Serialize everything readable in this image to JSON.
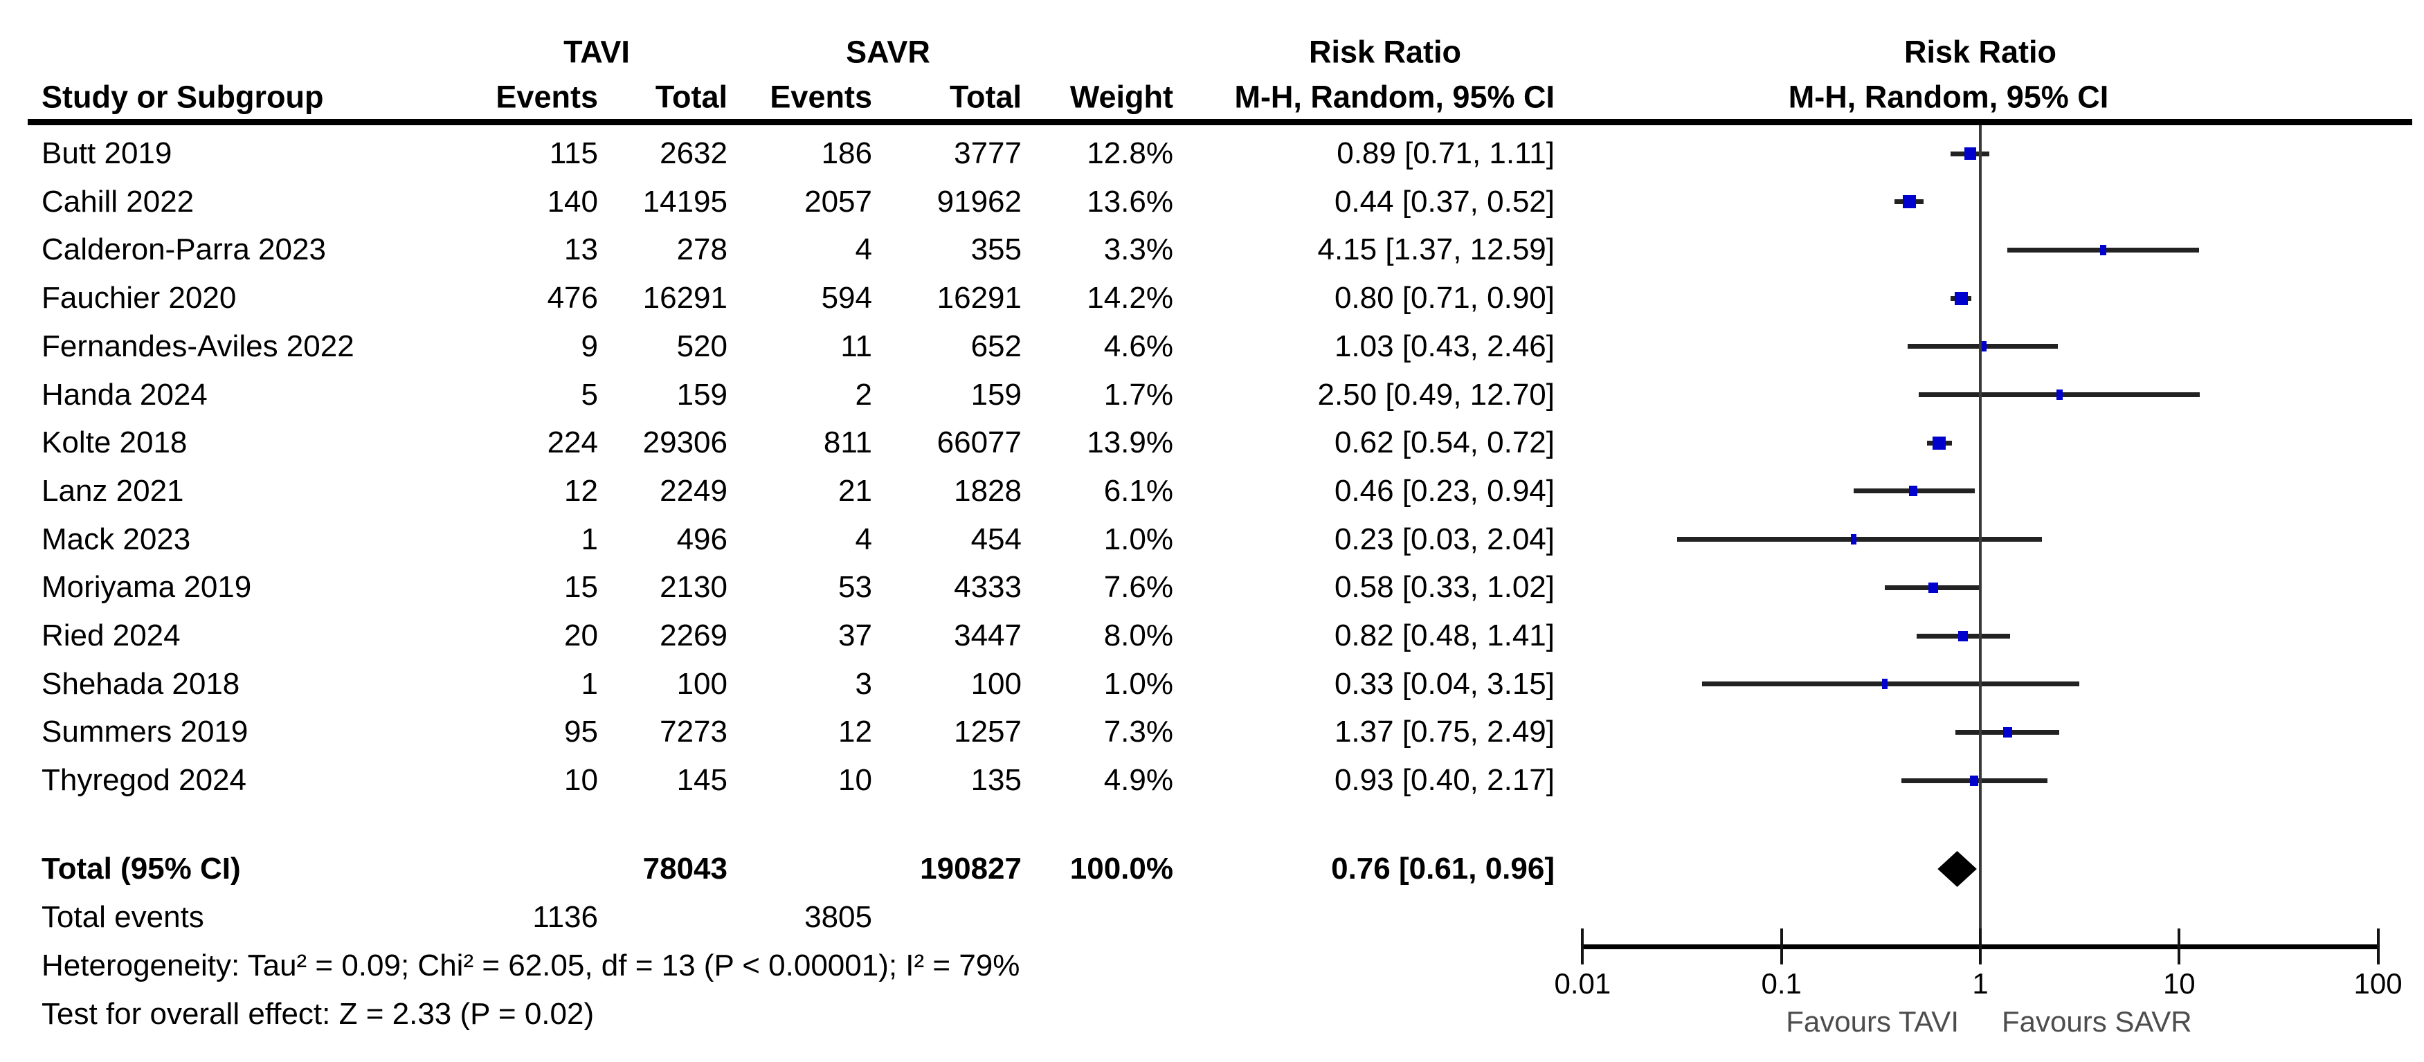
{
  "header": {
    "study_col": "Study or Subgroup",
    "group1": "TAVI",
    "group2": "SAVR",
    "events_col": "Events",
    "total_col": "Total",
    "weight_col": "Weight",
    "risk_ratio_left": "Risk Ratio",
    "method_left": "M-H, Random, 95% CI",
    "risk_ratio_right": "Risk Ratio",
    "method_right": "M-H, Random, 95% CI"
  },
  "chart_data": {
    "type": "scatter",
    "subtype": "forest-plot-meta-analysis",
    "x_scale": "log10",
    "x_ticks": [
      "0.01",
      "0.1",
      "1",
      "10",
      "100"
    ],
    "x_tick_values": [
      0.01,
      0.1,
      1,
      10,
      100
    ],
    "xlim": [
      0.01,
      100
    ],
    "favours_left": "Favours TAVI",
    "favours_right": "Favours SAVR",
    "studies": [
      {
        "name": "Butt 2019",
        "events1": 115,
        "total1": 2632,
        "events2": 186,
        "total2": 3777,
        "weight": "12.8%",
        "weight_pct": 12.8,
        "rr": 0.89,
        "lo": 0.71,
        "hi": 1.11,
        "ci": "0.89 [0.71, 1.11]"
      },
      {
        "name": "Cahill 2022",
        "events1": 140,
        "total1": 14195,
        "events2": 2057,
        "total2": 91962,
        "weight": "13.6%",
        "weight_pct": 13.6,
        "rr": 0.44,
        "lo": 0.37,
        "hi": 0.52,
        "ci": "0.44 [0.37, 0.52]"
      },
      {
        "name": "Calderon-Parra 2023",
        "events1": 13,
        "total1": 278,
        "events2": 4,
        "total2": 355,
        "weight": "3.3%",
        "weight_pct": 3.3,
        "rr": 4.15,
        "lo": 1.37,
        "hi": 12.59,
        "ci": "4.15 [1.37, 12.59]"
      },
      {
        "name": "Fauchier 2020",
        "events1": 476,
        "total1": 16291,
        "events2": 594,
        "total2": 16291,
        "weight": "14.2%",
        "weight_pct": 14.2,
        "rr": 0.8,
        "lo": 0.71,
        "hi": 0.9,
        "ci": "0.80 [0.71, 0.90]"
      },
      {
        "name": "Fernandes-Aviles 2022",
        "events1": 9,
        "total1": 520,
        "events2": 11,
        "total2": 652,
        "weight": "4.6%",
        "weight_pct": 4.6,
        "rr": 1.03,
        "lo": 0.43,
        "hi": 2.46,
        "ci": "1.03 [0.43, 2.46]"
      },
      {
        "name": "Handa 2024",
        "events1": 5,
        "total1": 159,
        "events2": 2,
        "total2": 159,
        "weight": "1.7%",
        "weight_pct": 1.7,
        "rr": 2.5,
        "lo": 0.49,
        "hi": 12.7,
        "ci": "2.50 [0.49, 12.70]"
      },
      {
        "name": "Kolte 2018",
        "events1": 224,
        "total1": 29306,
        "events2": 811,
        "total2": 66077,
        "weight": "13.9%",
        "weight_pct": 13.9,
        "rr": 0.62,
        "lo": 0.54,
        "hi": 0.72,
        "ci": "0.62 [0.54, 0.72]"
      },
      {
        "name": "Lanz 2021",
        "events1": 12,
        "total1": 2249,
        "events2": 21,
        "total2": 1828,
        "weight": "6.1%",
        "weight_pct": 6.1,
        "rr": 0.46,
        "lo": 0.23,
        "hi": 0.94,
        "ci": "0.46 [0.23, 0.94]"
      },
      {
        "name": "Mack 2023",
        "events1": 1,
        "total1": 496,
        "events2": 4,
        "total2": 454,
        "weight": "1.0%",
        "weight_pct": 1.0,
        "rr": 0.23,
        "lo": 0.03,
        "hi": 2.04,
        "ci": "0.23 [0.03, 2.04]"
      },
      {
        "name": "Moriyama 2019",
        "events1": 15,
        "total1": 2130,
        "events2": 53,
        "total2": 4333,
        "weight": "7.6%",
        "weight_pct": 7.6,
        "rr": 0.58,
        "lo": 0.33,
        "hi": 1.02,
        "ci": "0.58 [0.33, 1.02]"
      },
      {
        "name": "Ried 2024",
        "events1": 20,
        "total1": 2269,
        "events2": 37,
        "total2": 3447,
        "weight": "8.0%",
        "weight_pct": 8.0,
        "rr": 0.82,
        "lo": 0.48,
        "hi": 1.41,
        "ci": "0.82 [0.48, 1.41]"
      },
      {
        "name": "Shehada 2018",
        "events1": 1,
        "total1": 100,
        "events2": 3,
        "total2": 100,
        "weight": "1.0%",
        "weight_pct": 1.0,
        "rr": 0.33,
        "lo": 0.04,
        "hi": 3.15,
        "ci": "0.33 [0.04, 3.15]"
      },
      {
        "name": "Summers 2019",
        "events1": 95,
        "total1": 7273,
        "events2": 12,
        "total2": 1257,
        "weight": "7.3%",
        "weight_pct": 7.3,
        "rr": 1.37,
        "lo": 0.75,
        "hi": 2.49,
        "ci": "1.37 [0.75, 2.49]"
      },
      {
        "name": "Thyregod 2024",
        "events1": 10,
        "total1": 145,
        "events2": 10,
        "total2": 135,
        "weight": "4.9%",
        "weight_pct": 4.9,
        "rr": 0.93,
        "lo": 0.4,
        "hi": 2.17,
        "ci": "0.93 [0.40, 2.17]"
      }
    ],
    "total": {
      "label": "Total (95% CI)",
      "total1": 78043,
      "total2": 190827,
      "weight": "100.0%",
      "rr": 0.76,
      "lo": 0.61,
      "hi": 0.96,
      "ci": "0.76 [0.61, 0.96]"
    },
    "total_events": {
      "label": "Total events",
      "tavi": 1136,
      "savr": 3805
    },
    "heterogeneity": "Heterogeneity: Tau² = 0.09; Chi² = 62.05, df = 13 (P < 0.00001); I² = 79%",
    "overall_effect": "Test for overall effect: Z = 2.33 (P = 0.02)"
  },
  "colors": {
    "marker_blue": "#0101cd",
    "diamond_black": "#000000",
    "ci_line": "#222222",
    "axis_black": "#141414",
    "favours_gray": "#4d4d4d"
  }
}
